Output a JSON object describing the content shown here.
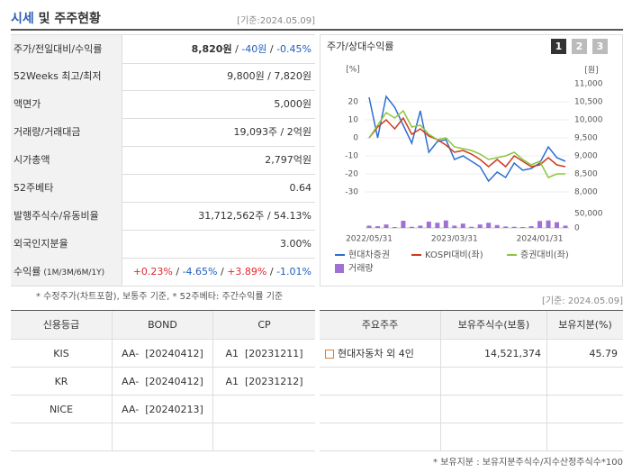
{
  "header": {
    "title": [
      {
        "text": "시세",
        "color": "#2d5db5"
      },
      {
        "text": " 및 주주현황",
        "color": "#333333"
      }
    ],
    "date": "[기준:2024.05.09]"
  },
  "summary": {
    "rows": [
      {
        "label": "주가/전일대비/수익률",
        "value": [
          {
            "text": "8,820원",
            "bold": true
          },
          {
            "text": " / "
          },
          {
            "text": "-40원",
            "color": "#1f5fbf"
          },
          {
            "text": " / "
          },
          {
            "text": "-0.45%",
            "color": "#1f5fbf"
          }
        ]
      },
      {
        "label": "52Weeks 최고/최저",
        "value": [
          {
            "text": "9,800원 / 7,820원"
          }
        ]
      },
      {
        "label": "액면가",
        "value": [
          {
            "text": "5,000원"
          }
        ]
      },
      {
        "label": "거래량/거래대금",
        "value": [
          {
            "text": "19,093주 / 2억원"
          }
        ]
      },
      {
        "label": "시가총액",
        "value": [
          {
            "text": "2,797억원"
          }
        ]
      },
      {
        "label": "52주베타",
        "value": [
          {
            "text": "0.64"
          }
        ]
      },
      {
        "label": "발행주식수/유동비율",
        "value": [
          {
            "text": "31,712,562주 / 54.13%"
          }
        ]
      },
      {
        "label": "외국인지분율",
        "value": [
          {
            "text": "3.00%"
          }
        ]
      },
      {
        "label": "수익률",
        "label_note": "(1M/3M/6M/1Y)",
        "value": [
          {
            "text": "+0.23%",
            "color": "#e0282e"
          },
          {
            "text": " / "
          },
          {
            "text": "-4.65%",
            "color": "#1f5fbf"
          },
          {
            "text": " / "
          },
          {
            "text": "+3.89%",
            "color": "#e0282e"
          },
          {
            "text": " / "
          },
          {
            "text": "-1.01%",
            "color": "#1f5fbf"
          }
        ]
      }
    ],
    "note": "* 수정주가(차트포함), 보통주 기준, * 52주베타: 주간수익률 기준"
  },
  "chart_data": {
    "type": "line",
    "title": "주가/상대수익률",
    "tabs": [
      "1",
      "2",
      "3"
    ],
    "y_unit": "[%]",
    "y2_unit": "[원]",
    "grid": true,
    "categories": [
      "2022/05/31",
      null,
      null,
      null,
      null,
      null,
      null,
      null,
      null,
      null,
      "2023/03/31",
      null,
      null,
      null,
      null,
      null,
      null,
      null,
      null,
      null,
      "2024/01/31",
      null,
      null,
      null
    ],
    "series": [
      {
        "name": "현대차증권",
        "color": "#2e6fd0",
        "values": [
          22.5,
          0,
          23,
          17,
          7,
          -3,
          15,
          -8,
          -2,
          -1,
          -12,
          -10,
          -13,
          -16,
          -24,
          -19,
          -22,
          -14,
          -18,
          -17,
          -14,
          -5,
          -11,
          -13
        ]
      },
      {
        "name": "KOSPI대비(좌)",
        "color": "#d23a1e",
        "values": [
          0,
          6,
          10,
          5,
          11,
          2,
          5,
          1,
          -1,
          -4,
          -8,
          -7,
          -9,
          -12,
          -16,
          -12,
          -16,
          -10,
          -13,
          -16,
          -15,
          -11,
          -15,
          -16
        ]
      },
      {
        "name": "증권대비(좌)",
        "color": "#8cc63f",
        "values": [
          0,
          7,
          14,
          11,
          15,
          6,
          7,
          2,
          -1,
          0,
          -5,
          -6,
          -7,
          -9,
          -12,
          -11,
          -10,
          -8,
          -12,
          -15,
          -13,
          -22,
          -20,
          -20
        ]
      }
    ],
    "ylim": [
      -30,
      30
    ],
    "yticks": [
      20,
      10,
      0,
      -10,
      -20,
      -30
    ],
    "y2lim": [
      8000,
      11000
    ],
    "y2ticks": [
      {
        "value": 11000,
        "label": "11,000"
      },
      {
        "value": 10500,
        "label": "10,500"
      },
      {
        "value": 10000,
        "label": "10,000"
      },
      {
        "value": 9500,
        "label": "9,500"
      },
      {
        "value": 9000,
        "label": "9,000"
      },
      {
        "value": 8500,
        "label": "8,500"
      },
      {
        "value": 8000,
        "label": "8,000"
      }
    ],
    "volume": {
      "name": "거래량",
      "color": "#a070d6",
      "values": [
        8000,
        6000,
        12000,
        3000,
        25000,
        4000,
        8000,
        22000,
        18000,
        26000,
        8000,
        15000,
        4000,
        12000,
        18000,
        10000,
        5000,
        4000,
        3000,
        6000,
        24000,
        26000,
        20000,
        8000
      ],
      "ylim": [
        0,
        50000
      ],
      "yticks": [
        {
          "value": 50000,
          "label": "50,000"
        },
        0
      ]
    }
  },
  "date2": "[기준: 2024.05.09]",
  "credit": {
    "headers": [
      "신용등급",
      "BOND",
      "CP"
    ],
    "rows": [
      [
        "KIS",
        "AA-  [20240412]",
        "A1  [20231211]"
      ],
      [
        "KR",
        "AA-  [20240412]",
        "A1  [20231212]"
      ],
      [
        "NICE",
        "AA-  [20240213]",
        null
      ]
    ]
  },
  "holders": {
    "headers": [
      "주요주주",
      "보유주식수(보통)",
      "보유지분(%)"
    ],
    "rows": [
      [
        "현대자동차 외 4인",
        "14,521,374",
        "45.79"
      ]
    ],
    "note": "* 보유지분 : 보유지분주식수/지수산정주식수*100"
  }
}
